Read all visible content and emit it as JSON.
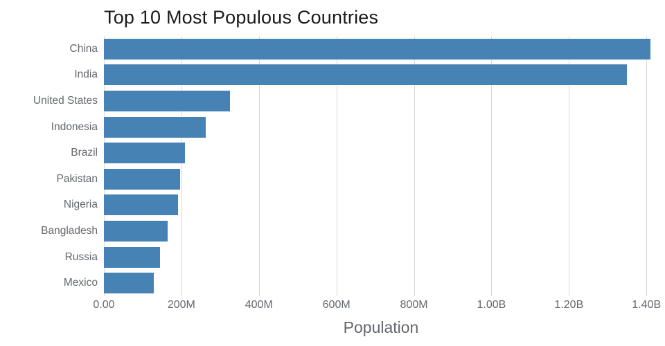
{
  "chart_data": {
    "type": "bar",
    "orientation": "horizontal",
    "title": "Top 10 Most Populous Countries",
    "xlabel": "Population",
    "ylabel": "",
    "categories": [
      "China",
      "India",
      "United States",
      "Indonesia",
      "Brazil",
      "Pakistan",
      "Nigeria",
      "Bangladesh",
      "Russia",
      "Mexico"
    ],
    "values": [
      1410000000,
      1350000000,
      325000000,
      263000000,
      209000000,
      197000000,
      191000000,
      165000000,
      144000000,
      129000000
    ],
    "xlim": [
      0,
      1430000000
    ],
    "x_ticks": [
      {
        "label": "0.00",
        "value": 0
      },
      {
        "label": "200M",
        "value": 200000000
      },
      {
        "label": "400M",
        "value": 400000000
      },
      {
        "label": "600M",
        "value": 600000000
      },
      {
        "label": "800M",
        "value": 800000000
      },
      {
        "label": "1.00B",
        "value": 1000000000
      },
      {
        "label": "1.20B",
        "value": 1200000000
      },
      {
        "label": "1.40B",
        "value": 1400000000
      }
    ],
    "grid": true,
    "legend": "none",
    "colors": {
      "bar": "#4682b4",
      "gridline": "#d9d9d9",
      "title_text": "#1a1a1a",
      "axis_text": "#63676d",
      "background": "#ffffff"
    }
  }
}
